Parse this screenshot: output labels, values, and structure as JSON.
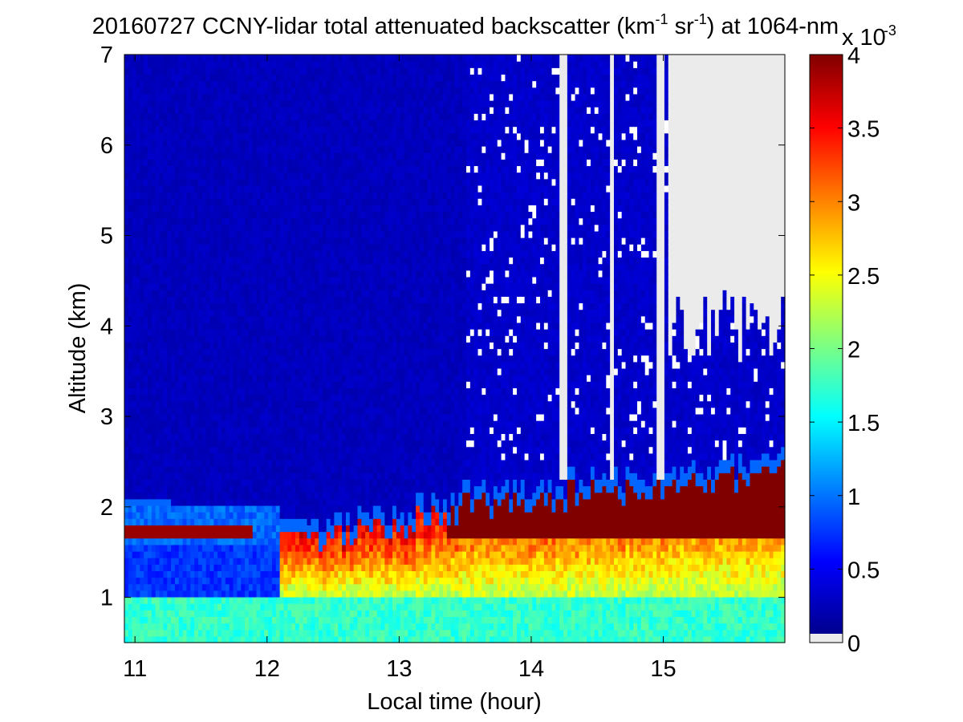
{
  "chart_data": {
    "type": "heatmap",
    "title": {
      "prefix": "20160727 CCNY-lidar total attenuated backscatter (km",
      "sup1": "-1",
      "mid": " sr",
      "sup2": "-1",
      "suffix": ") at 1064-nm"
    },
    "xlabel": "Local time (hour)",
    "ylabel": "Altitude (km)",
    "xlim": [
      10.92,
      15.92
    ],
    "ylim": [
      0.5,
      7
    ],
    "xticks": [
      "11",
      "12",
      "13",
      "14",
      "15"
    ],
    "xtick_values": [
      11,
      12,
      13,
      14,
      15
    ],
    "yticks": [
      "1",
      "2",
      "3",
      "4",
      "5",
      "6",
      "7"
    ],
    "ytick_values": [
      1,
      2,
      3,
      4,
      5,
      6,
      7
    ],
    "colorbar": {
      "colormap": "jet",
      "range": [
        0,
        4
      ],
      "ticks": [
        "0",
        "0.5",
        "1",
        "1.5",
        "2",
        "2.5",
        "3",
        "3.5",
        "4"
      ],
      "tick_values": [
        0,
        0.5,
        1,
        1.5,
        2,
        2.5,
        3,
        3.5,
        4
      ],
      "multiplier": {
        "base": "x 10",
        "exp": "-3"
      },
      "nodata_color": "#ebebeb"
    },
    "features": {
      "surface_layer_value": 1.7,
      "pbl_top_km": [
        [
          10.92,
          1.95
        ],
        [
          12.0,
          1.8
        ],
        [
          12.4,
          1.65
        ],
        [
          13.0,
          1.8
        ],
        [
          13.5,
          2.0
        ],
        [
          14.0,
          2.05
        ],
        [
          14.5,
          2.15
        ],
        [
          15.0,
          2.2
        ],
        [
          15.5,
          2.3
        ],
        [
          15.92,
          2.4
        ]
      ],
      "residual_layer": {
        "x": [
          10.92,
          11.9
        ],
        "altitude_km": 1.72,
        "value": 4.0
      },
      "saturated_band": {
        "x": [
          13.35,
          15.92
        ],
        "altitude_km": [
          1.65,
          2.2
        ],
        "value": 4.0
      },
      "free_troposphere_value": 0.18,
      "nodata_after_hour": 15.05,
      "nodata_columns": [
        [
          14.2,
          14.27
        ],
        [
          14.6,
          14.62
        ],
        [
          14.95,
          15.0
        ]
      ]
    }
  }
}
